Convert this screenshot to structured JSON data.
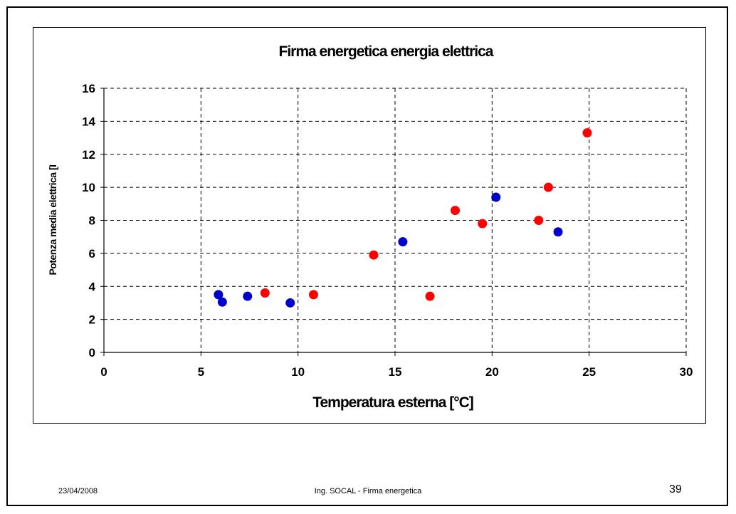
{
  "slide": {
    "date": "23/04/2008",
    "footer_text": "Ing. SOCAL -  Firma energetica",
    "page_number": "39"
  },
  "chart_data": {
    "type": "scatter",
    "title": "Firma energetica energia elettrica",
    "xlabel": "Temperatura esterna [°C]",
    "ylabel": "Potenza media elettrica [I",
    "xlim": [
      0,
      30
    ],
    "ylim": [
      0,
      16
    ],
    "x_ticks": [
      "0",
      "5",
      "10",
      "15",
      "20",
      "25",
      "30"
    ],
    "y_ticks": [
      "0",
      "2",
      "4",
      "6",
      "8",
      "10",
      "12",
      "14",
      "16"
    ],
    "grid": true,
    "colors": {
      "blue_series": "#0000cc",
      "red_series": "#ff0000"
    },
    "series": [
      {
        "color": "#0000cc",
        "points": [
          {
            "x": 5.9,
            "y": 3.5
          },
          {
            "x": 6.1,
            "y": 3.05
          },
          {
            "x": 7.4,
            "y": 3.4
          },
          {
            "x": 9.6,
            "y": 3.0
          },
          {
            "x": 15.4,
            "y": 6.7
          },
          {
            "x": 20.2,
            "y": 9.4
          },
          {
            "x": 23.4,
            "y": 7.3
          }
        ]
      },
      {
        "color": "#ff0000",
        "points": [
          {
            "x": 8.3,
            "y": 3.6
          },
          {
            "x": 10.8,
            "y": 3.5
          },
          {
            "x": 13.9,
            "y": 5.9
          },
          {
            "x": 16.8,
            "y": 3.4
          },
          {
            "x": 18.1,
            "y": 8.6
          },
          {
            "x": 19.5,
            "y": 7.8
          },
          {
            "x": 22.4,
            "y": 8.0
          },
          {
            "x": 22.9,
            "y": 10.0
          },
          {
            "x": 24.9,
            "y": 13.3
          }
        ]
      }
    ]
  }
}
